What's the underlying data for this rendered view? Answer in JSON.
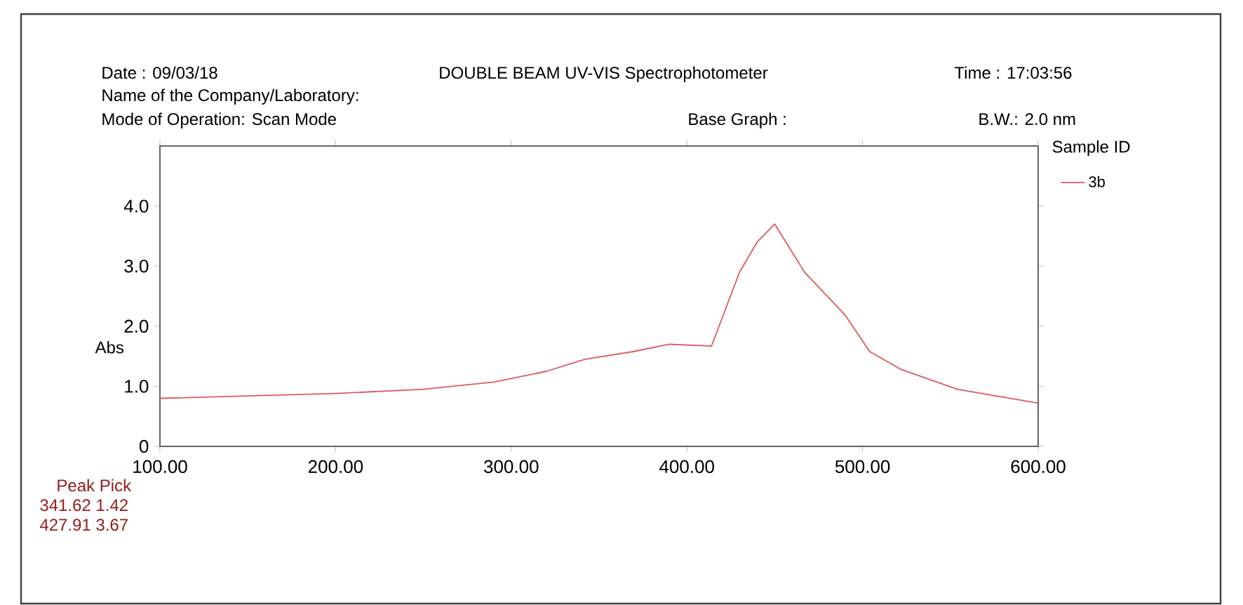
{
  "chart_data": {
    "type": "line",
    "subtitle": "DOUBLE BEAM UV-VIS Spectrophotometer",
    "ylabel": "Abs",
    "legend_title": "Sample ID",
    "annotations": [
      "Date : 09/03/18",
      "Time :  17:03:56",
      "Name of the Company/Laboratory:",
      "Mode of Operation:  Scan Mode",
      "Base Graph :",
      "B.W.: 2.0 nm",
      "Peak Pick",
      "341.62  1.42",
      "427.91  3.67"
    ],
    "series": [
      {
        "name": "3b",
        "color": "#e05a5a",
        "x": [
          100,
          200,
          250,
          290,
          320,
          342,
          370,
          390,
          414,
          430,
          440,
          450,
          467,
          490,
          504,
          522,
          554,
          600
        ],
        "values": [
          0.8,
          0.88,
          0.95,
          1.07,
          1.25,
          1.45,
          1.58,
          1.7,
          1.67,
          2.9,
          3.4,
          3.7,
          2.9,
          2.19,
          1.58,
          1.28,
          0.95,
          0.72
        ]
      }
    ],
    "xlim": [
      100,
      600
    ],
    "xticks": [
      {
        "value": 100,
        "label": "100.00"
      },
      {
        "value": 200,
        "label": "200.00"
      },
      {
        "value": 300,
        "label": "300.00"
      },
      {
        "value": 400,
        "label": "400.00"
      },
      {
        "value": 500,
        "label": "500.00"
      },
      {
        "value": 600,
        "label": "600.00"
      }
    ],
    "ylim": [
      0,
      5
    ],
    "yticks": [
      0,
      {
        "value": 1,
        "label": "1.0"
      },
      {
        "value": 2,
        "label": "2.0"
      },
      {
        "value": 3,
        "label": "3.0"
      },
      {
        "value": 4,
        "label": "4.0"
      }
    ],
    "legend": "right",
    "grid": false,
    "marker": "none",
    "line_style": "solid"
  }
}
